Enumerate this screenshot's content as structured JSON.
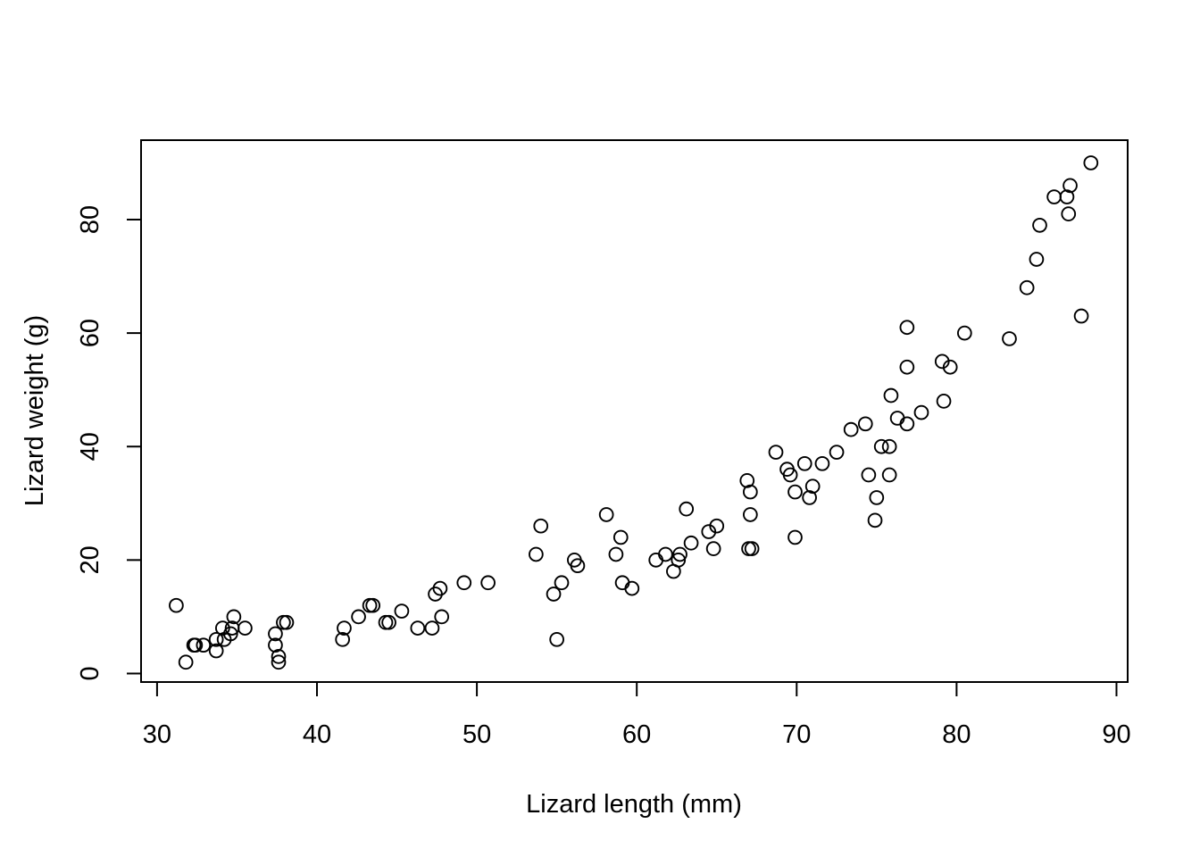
{
  "chart_data": {
    "type": "scatter",
    "title": "",
    "xlabel": "Lizard length (mm)",
    "ylabel": "Lizard weight (g)",
    "xlim": [
      29,
      90.7
    ],
    "ylim": [
      -1.5,
      94
    ],
    "x_ticks": [
      30,
      40,
      50,
      60,
      70,
      80,
      90
    ],
    "y_ticks": [
      0,
      20,
      40,
      60,
      80
    ],
    "x_tick_labels": [
      "30",
      "40",
      "50",
      "60",
      "70",
      "80",
      "90"
    ],
    "y_tick_labels": [
      "0",
      "20",
      "40",
      "60",
      "80"
    ],
    "grid": false,
    "marker": "open-circle",
    "points": [
      [
        31.2,
        12
      ],
      [
        31.8,
        2
      ],
      [
        32.3,
        5
      ],
      [
        32.4,
        5
      ],
      [
        32.9,
        5
      ],
      [
        33.7,
        4
      ],
      [
        33.7,
        6
      ],
      [
        34.1,
        8
      ],
      [
        34.2,
        6
      ],
      [
        34.6,
        7
      ],
      [
        34.7,
        8
      ],
      [
        34.8,
        10
      ],
      [
        35.5,
        8
      ],
      [
        37.4,
        7
      ],
      [
        37.4,
        5
      ],
      [
        37.6,
        3
      ],
      [
        37.6,
        2
      ],
      [
        37.9,
        9
      ],
      [
        38.1,
        9
      ],
      [
        41.6,
        6
      ],
      [
        41.7,
        8
      ],
      [
        42.6,
        10
      ],
      [
        43.3,
        12
      ],
      [
        43.5,
        12
      ],
      [
        44.3,
        9
      ],
      [
        44.5,
        9
      ],
      [
        45.3,
        11
      ],
      [
        46.3,
        8
      ],
      [
        47.2,
        8
      ],
      [
        47.4,
        14
      ],
      [
        47.7,
        15
      ],
      [
        47.8,
        10
      ],
      [
        49.2,
        16
      ],
      [
        50.7,
        16
      ],
      [
        53.7,
        21
      ],
      [
        54.0,
        26
      ],
      [
        54.8,
        14
      ],
      [
        55.0,
        6
      ],
      [
        55.3,
        16
      ],
      [
        56.1,
        20
      ],
      [
        56.3,
        19
      ],
      [
        58.1,
        28
      ],
      [
        58.7,
        21
      ],
      [
        59.0,
        24
      ],
      [
        59.1,
        16
      ],
      [
        59.7,
        15
      ],
      [
        61.2,
        20
      ],
      [
        61.8,
        21
      ],
      [
        62.3,
        18
      ],
      [
        62.6,
        20
      ],
      [
        62.7,
        21
      ],
      [
        63.1,
        29
      ],
      [
        63.4,
        23
      ],
      [
        64.5,
        25
      ],
      [
        64.8,
        22
      ],
      [
        65.0,
        26
      ],
      [
        66.9,
        34
      ],
      [
        67.0,
        22
      ],
      [
        67.1,
        32
      ],
      [
        67.1,
        28
      ],
      [
        67.2,
        22
      ],
      [
        68.7,
        39
      ],
      [
        69.4,
        36
      ],
      [
        69.6,
        35
      ],
      [
        69.9,
        32
      ],
      [
        69.9,
        24
      ],
      [
        70.5,
        37
      ],
      [
        70.8,
        31
      ],
      [
        71.0,
        33
      ],
      [
        71.6,
        37
      ],
      [
        72.5,
        39
      ],
      [
        73.4,
        43
      ],
      [
        74.3,
        44
      ],
      [
        74.5,
        35
      ],
      [
        74.9,
        27
      ],
      [
        75.0,
        31
      ],
      [
        75.3,
        40
      ],
      [
        75.8,
        40
      ],
      [
        75.8,
        35
      ],
      [
        75.9,
        49
      ],
      [
        76.3,
        45
      ],
      [
        76.9,
        54
      ],
      [
        76.9,
        61
      ],
      [
        76.9,
        44
      ],
      [
        77.8,
        46
      ],
      [
        79.1,
        55
      ],
      [
        79.2,
        48
      ],
      [
        79.6,
        54
      ],
      [
        80.5,
        60
      ],
      [
        83.3,
        59
      ],
      [
        84.4,
        68
      ],
      [
        85.0,
        73
      ],
      [
        85.2,
        79
      ],
      [
        86.1,
        84
      ],
      [
        86.9,
        84
      ],
      [
        87.0,
        81
      ],
      [
        87.1,
        86
      ],
      [
        87.8,
        63
      ],
      [
        88.4,
        90
      ]
    ]
  }
}
